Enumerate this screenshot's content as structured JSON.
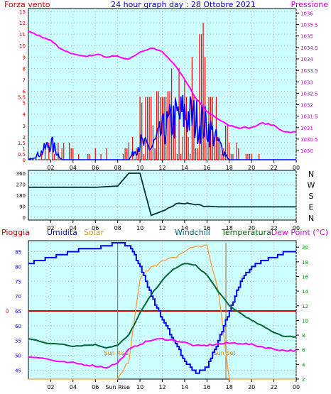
{
  "header": {
    "left_label": "Forza vento",
    "title": "24 hour graph day : 28 Ottobre 2021",
    "right_label": "Pressione"
  },
  "bottom_legend": {
    "pioggia": "Pioggia",
    "umidita": "Umidita",
    "solar": "Solar",
    "windchill": "Windchill",
    "temperatura": "Temperatura",
    "dewpoint": "Dew Point (°C)"
  },
  "colors": {
    "wind": "#ff0000",
    "gust": "#0000ff",
    "pressure": "#ff00ff",
    "direction": "#003333",
    "humidity": "#0000ff",
    "solar": "#ff9933",
    "windchill": "#006633",
    "temperature": "#009900",
    "dewpoint": "#ff00ff",
    "rain": "#cc0000",
    "panel": "#ccffff",
    "frame": "#000000",
    "sunline": "#996633"
  },
  "chart_data": [
    {
      "type": "bar",
      "name": "wind",
      "x_ticks": [
        "02",
        "04",
        "06",
        "08",
        "10",
        "12",
        "14",
        "16",
        "18",
        "20",
        "22",
        "00"
      ],
      "y_left_ticks": [
        "0",
        "0.5",
        "1",
        "1.5",
        "2",
        "3",
        "4",
        "5",
        "5.5",
        "6",
        "7",
        "8",
        "9",
        "10",
        "11",
        "12",
        "13"
      ],
      "y_left_range": [
        0,
        13
      ],
      "y_right_ticks": [
        "1030",
        "1030.5",
        "1031",
        "1031.5",
        "1032",
        "1032.5",
        "1033",
        "1033.5",
        "1034",
        "1034.5",
        "1035",
        "1035.5",
        "1036"
      ],
      "y_right_range": [
        1029.6,
        1036.2
      ],
      "wind_speed_hourly_max": [
        0,
        1.8,
        2.5,
        1.8,
        1.0,
        0.5,
        1.8,
        1.0,
        1.8,
        2.0,
        5.5,
        7.5,
        9.5,
        13,
        13,
        12,
        6.5,
        3.0,
        1.8,
        0.8,
        0.5,
        0.3,
        0.3,
        0
      ],
      "gust_hourly": [
        0,
        0.5,
        1.5,
        0,
        0,
        0,
        0,
        0,
        0,
        0,
        1.5,
        1.0,
        2.5,
        3.5,
        4.0,
        3.5,
        3.0,
        1.5,
        0,
        0,
        0,
        0,
        0,
        0
      ],
      "pressure_hourly": [
        1035.2,
        1035.0,
        1034.8,
        1034.4,
        1034.2,
        1034.1,
        1034.2,
        1034.1,
        1034.1,
        1034.0,
        1034.3,
        1034.5,
        1034.3,
        1033.8,
        1033.1,
        1032.3,
        1031.7,
        1031.4,
        1031.1,
        1031.0,
        1031.0,
        1031.2,
        1031.1,
        1030.8
      ]
    },
    {
      "type": "line",
      "name": "wind_direction",
      "x_ticks": [
        "02",
        "04",
        "06",
        "08",
        "10",
        "12",
        "14",
        "16",
        "18",
        "20",
        "22",
        "00"
      ],
      "y_ticks": [
        "360",
        "270",
        "180",
        "90",
        "0"
      ],
      "y_range": [
        0,
        360
      ],
      "right_labels": [
        "N",
        "W",
        "S",
        "E",
        "N"
      ],
      "direction_hourly": [
        245,
        245,
        245,
        245,
        245,
        245,
        245,
        250,
        255,
        360,
        360,
        15,
        50,
        100,
        110,
        95,
        90,
        85,
        85,
        85,
        85,
        85,
        85,
        85
      ]
    },
    {
      "type": "line",
      "name": "atmosphere",
      "x_ticks": [
        "02",
        "04",
        "06",
        "Sun Rise",
        "10",
        "12",
        "14",
        "16",
        "18",
        "20",
        "22",
        "00"
      ],
      "y_left_ticks": [
        "45",
        "50",
        "55",
        "60",
        "65",
        "70",
        "75",
        "80",
        "85"
      ],
      "y_left_range": [
        42,
        88
      ],
      "y_right_ticks": [
        "2",
        "4",
        "6",
        "8",
        "10",
        "12",
        "14",
        "16",
        "18",
        "20"
      ],
      "y_right_range": [
        2,
        20.6
      ],
      "rain_level": 0,
      "rain_axis_value": 65,
      "annotations": [
        "Sun Rise",
        "Sun Set"
      ],
      "sunrise_hour": 8,
      "sunset_hour": 17.7,
      "humidity_hourly": [
        81,
        82,
        83,
        84,
        85,
        86,
        86,
        87,
        88,
        87,
        80,
        70,
        62,
        55,
        48,
        44,
        46,
        55,
        65,
        75,
        80,
        82,
        83,
        85
      ],
      "temperature_hourly": [
        7.5,
        7.2,
        6.8,
        6.8,
        6.5,
        6.6,
        6.7,
        6.3,
        6.6,
        8.0,
        11.0,
        13.5,
        15.5,
        17.0,
        17.8,
        17.5,
        16.2,
        14.0,
        12.0,
        11.0,
        10.0,
        9.2,
        8.4,
        7.8
      ],
      "dewpoint_hourly": [
        5.0,
        5.0,
        4.6,
        4.3,
        4.2,
        4.0,
        3.8,
        3.6,
        4.2,
        6.0,
        6.8,
        7.3,
        7.5,
        7.3,
        7.0,
        6.5,
        6.6,
        6.8,
        6.9,
        6.9,
        6.7,
        6.4,
        6.1,
        5.9
      ],
      "solar_hourly": [
        0,
        0,
        0,
        0,
        0,
        0,
        0,
        0,
        0,
        50,
        280,
        320,
        330,
        340,
        360,
        375,
        375,
        250,
        0,
        0,
        0,
        0,
        0,
        0
      ],
      "solar_range": [
        0,
        380
      ]
    }
  ]
}
